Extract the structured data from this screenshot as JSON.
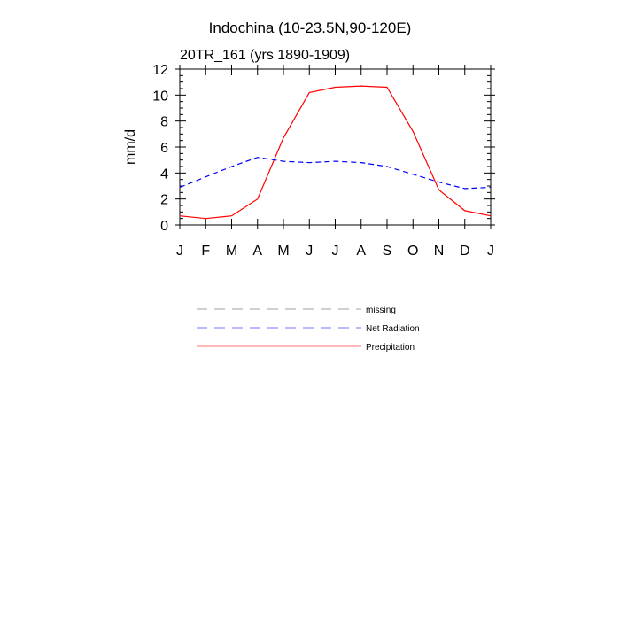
{
  "chart_data": {
    "type": "line",
    "title": "Indochina (10-23.5N,90-120E)",
    "subtitle": "20TR_161 (yrs 1890-1909)",
    "xlabel": "",
    "ylabel": "mm/d",
    "categories": [
      "J",
      "F",
      "M",
      "A",
      "M",
      "J",
      "J",
      "A",
      "S",
      "O",
      "N",
      "D",
      "J"
    ],
    "ylim": [
      0,
      12
    ],
    "yticks": [
      0,
      2,
      4,
      6,
      8,
      10,
      12
    ],
    "grid": false,
    "legend_position": "below",
    "series": [
      {
        "name": "Precipitation",
        "color": "#ff0000",
        "dash": "solid",
        "values": [
          0.7,
          0.5,
          0.7,
          2.0,
          6.7,
          10.2,
          10.6,
          10.7,
          10.6,
          7.2,
          2.7,
          1.1,
          0.7
        ]
      },
      {
        "name": "Net Radiation",
        "color": "#0000ff",
        "dash": "dashed",
        "values": [
          2.9,
          3.7,
          4.5,
          5.2,
          4.9,
          4.8,
          4.9,
          4.8,
          4.5,
          3.9,
          3.3,
          2.8,
          2.9
        ]
      }
    ],
    "legend": [
      {
        "label": "missing",
        "color": "#a0a0a0",
        "dash": "dashed"
      },
      {
        "label": "Net Radiation",
        "color": "#0000ff",
        "dash": "dashed"
      },
      {
        "label": "Precipitation",
        "color": "#ff0000",
        "dash": "solid"
      }
    ]
  }
}
